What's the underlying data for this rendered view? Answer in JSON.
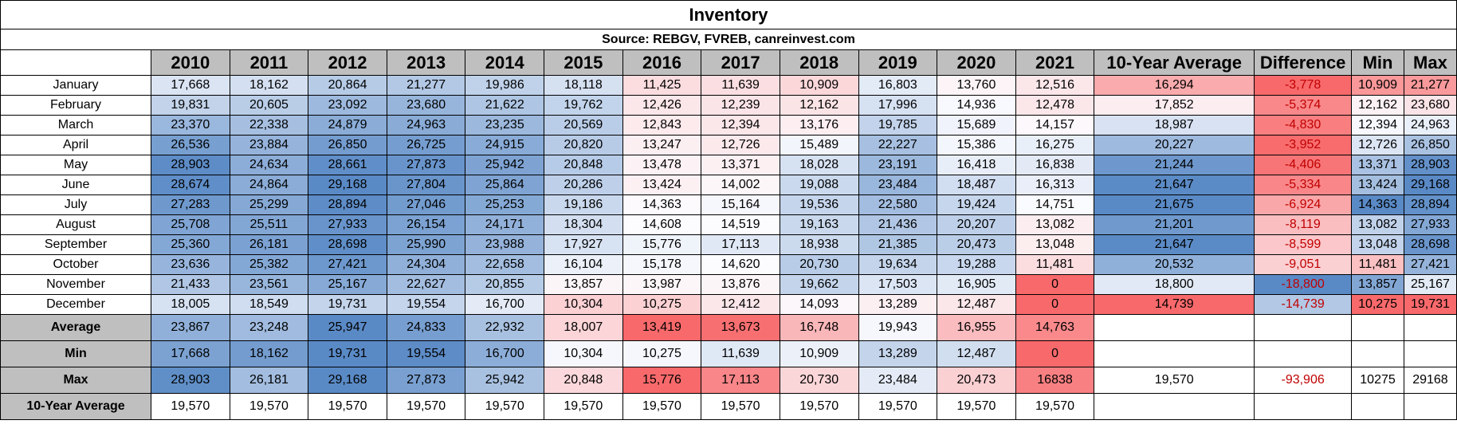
{
  "title": "Inventory",
  "source": "Source: REBGV, FVREB, canreinvest.com",
  "columns": [
    "2010",
    "2011",
    "2012",
    "2013",
    "2014",
    "2015",
    "2016",
    "2017",
    "2018",
    "2019",
    "2020",
    "2021",
    "10-Year Average",
    "Difference",
    "Min",
    "Max"
  ],
  "months": [
    {
      "label": "January",
      "values": [
        "17,668",
        "18,162",
        "20,864",
        "21,277",
        "19,986",
        "18,118",
        "11,425",
        "11,639",
        "10,909",
        "16,803",
        "13,760",
        "12,516"
      ],
      "avg": "16,294",
      "diff": "-3,778",
      "min": "10,909",
      "max": "21,277"
    },
    {
      "label": "February",
      "values": [
        "19,831",
        "20,605",
        "23,092",
        "23,680",
        "21,622",
        "19,762",
        "12,426",
        "12,239",
        "12,162",
        "17,996",
        "14,936",
        "12,478"
      ],
      "avg": "17,852",
      "diff": "-5,374",
      "min": "12,162",
      "max": "23,680"
    },
    {
      "label": "March",
      "values": [
        "23,370",
        "22,338",
        "24,879",
        "24,963",
        "23,235",
        "20,569",
        "12,843",
        "12,394",
        "13,176",
        "19,785",
        "15,689",
        "14,157"
      ],
      "avg": "18,987",
      "diff": "-4,830",
      "min": "12,394",
      "max": "24,963"
    },
    {
      "label": "April",
      "values": [
        "26,536",
        "23,884",
        "26,850",
        "26,725",
        "24,915",
        "20,820",
        "13,247",
        "12,726",
        "15,489",
        "22,227",
        "15,386",
        "16,275"
      ],
      "avg": "20,227",
      "diff": "-3,952",
      "min": "12,726",
      "max": "26,850"
    },
    {
      "label": "May",
      "values": [
        "28,903",
        "24,634",
        "28,661",
        "27,873",
        "25,942",
        "20,848",
        "13,478",
        "13,371",
        "18,028",
        "23,191",
        "16,418",
        "16,838"
      ],
      "avg": "21,244",
      "diff": "-4,406",
      "min": "13,371",
      "max": "28,903"
    },
    {
      "label": "June",
      "values": [
        "28,674",
        "24,864",
        "29,168",
        "27,804",
        "25,864",
        "20,286",
        "13,424",
        "14,002",
        "19,088",
        "23,484",
        "18,487",
        "16,313"
      ],
      "avg": "21,647",
      "diff": "-5,334",
      "min": "13,424",
      "max": "29,168"
    },
    {
      "label": "July",
      "values": [
        "27,283",
        "25,299",
        "28,894",
        "27,046",
        "25,253",
        "19,186",
        "14,363",
        "15,164",
        "19,536",
        "22,580",
        "19,424",
        "14,751"
      ],
      "avg": "21,675",
      "diff": "-6,924",
      "min": "14,363",
      "max": "28,894"
    },
    {
      "label": "August",
      "values": [
        "25,708",
        "25,511",
        "27,933",
        "26,154",
        "24,171",
        "18,304",
        "14,608",
        "14,519",
        "19,163",
        "21,436",
        "20,207",
        "13,082"
      ],
      "avg": "21,201",
      "diff": "-8,119",
      "min": "13,082",
      "max": "27,933"
    },
    {
      "label": "September",
      "values": [
        "25,360",
        "26,181",
        "28,698",
        "25,990",
        "23,988",
        "17,927",
        "15,776",
        "17,113",
        "18,938",
        "21,385",
        "20,473",
        "13,048"
      ],
      "avg": "21,647",
      "diff": "-8,599",
      "min": "13,048",
      "max": "28,698"
    },
    {
      "label": "October",
      "values": [
        "23,636",
        "25,382",
        "27,421",
        "24,304",
        "22,658",
        "16,104",
        "15,178",
        "14,620",
        "20,730",
        "19,634",
        "19,288",
        "11,481"
      ],
      "avg": "20,532",
      "diff": "-9,051",
      "min": "11,481",
      "max": "27,421"
    },
    {
      "label": "November",
      "values": [
        "21,433",
        "23,561",
        "25,167",
        "22,627",
        "20,855",
        "13,857",
        "13,987",
        "13,876",
        "19,662",
        "17,503",
        "16,905",
        "0"
      ],
      "avg": "18,800",
      "diff": "-18,800",
      "min": "13,857",
      "max": "25,167"
    },
    {
      "label": "December",
      "values": [
        "18,005",
        "18,549",
        "19,731",
        "19,554",
        "16,700",
        "10,304",
        "10,275",
        "12,412",
        "14,093",
        "13,289",
        "12,487",
        "0"
      ],
      "avg": "14,739",
      "diff": "-14,739",
      "min": "10,275",
      "max": "19,731"
    }
  ],
  "summary": [
    {
      "label": "Average",
      "values": [
        "23,867",
        "23,248",
        "25,947",
        "24,833",
        "22,932",
        "18,007",
        "13,419",
        "13,673",
        "16,748",
        "19,943",
        "16,955",
        "14,763"
      ],
      "avg": "",
      "diff": "",
      "min": "",
      "max": ""
    },
    {
      "label": "Min",
      "values": [
        "17,668",
        "18,162",
        "19,731",
        "19,554",
        "16,700",
        "10,304",
        "10,275",
        "11,639",
        "10,909",
        "13,289",
        "12,487",
        "0"
      ],
      "avg": "",
      "diff": "",
      "min": "",
      "max": ""
    },
    {
      "label": "Max",
      "values": [
        "28,903",
        "26,181",
        "29,168",
        "27,873",
        "25,942",
        "20,848",
        "15,776",
        "17,113",
        "20,730",
        "23,484",
        "20,473",
        "16838"
      ],
      "avg": "19,570",
      "diff": "-93,906",
      "min": "10275",
      "max": "29168"
    },
    {
      "label": "10-Year Average",
      "values": [
        "19,570",
        "19,570",
        "19,570",
        "19,570",
        "19,570",
        "19,570",
        "19,570",
        "19,570",
        "19,570",
        "19,570",
        "19,570",
        "19,570"
      ],
      "avg": "",
      "diff": "",
      "min": "",
      "max": ""
    }
  ],
  "colors": {
    "high": "#5a8ac6",
    "mid": "#fcfcff",
    "low": "#f8696b",
    "header_bg": "#bfbfbf",
    "negative_text": "#c00000"
  },
  "chart_data": {
    "type": "table",
    "title": "Inventory",
    "subtitle": "Source: REBGV, FVREB, canreinvest.com",
    "x": [
      "January",
      "February",
      "March",
      "April",
      "May",
      "June",
      "July",
      "August",
      "September",
      "October",
      "November",
      "December"
    ],
    "series": [
      {
        "name": "2010",
        "values": [
          17668,
          19831,
          23370,
          26536,
          28903,
          28674,
          27283,
          25708,
          25360,
          23636,
          21433,
          18005
        ]
      },
      {
        "name": "2011",
        "values": [
          18162,
          20605,
          22338,
          23884,
          24634,
          24864,
          25299,
          25511,
          26181,
          25382,
          23561,
          18549
        ]
      },
      {
        "name": "2012",
        "values": [
          20864,
          23092,
          24879,
          26850,
          28661,
          29168,
          28894,
          27933,
          28698,
          27421,
          25167,
          19731
        ]
      },
      {
        "name": "2013",
        "values": [
          21277,
          23680,
          24963,
          26725,
          27873,
          27804,
          27046,
          26154,
          25990,
          24304,
          22627,
          19554
        ]
      },
      {
        "name": "2014",
        "values": [
          19986,
          21622,
          23235,
          24915,
          25942,
          25864,
          25253,
          24171,
          23988,
          22658,
          20855,
          16700
        ]
      },
      {
        "name": "2015",
        "values": [
          18118,
          19762,
          20569,
          20820,
          20848,
          20286,
          19186,
          18304,
          17927,
          16104,
          13857,
          10304
        ]
      },
      {
        "name": "2016",
        "values": [
          11425,
          12426,
          12843,
          13247,
          13478,
          13424,
          14363,
          14608,
          15776,
          15178,
          13987,
          10275
        ]
      },
      {
        "name": "2017",
        "values": [
          11639,
          12239,
          12394,
          12726,
          13371,
          14002,
          15164,
          14519,
          17113,
          14620,
          13876,
          12412
        ]
      },
      {
        "name": "2018",
        "values": [
          10909,
          12162,
          13176,
          15489,
          18028,
          19088,
          19536,
          19163,
          18938,
          20730,
          19662,
          14093
        ]
      },
      {
        "name": "2019",
        "values": [
          16803,
          17996,
          19785,
          22227,
          23191,
          23484,
          22580,
          21436,
          21385,
          19634,
          17503,
          13289
        ]
      },
      {
        "name": "2020",
        "values": [
          13760,
          14936,
          15689,
          15386,
          16418,
          18487,
          19424,
          20207,
          20473,
          19288,
          16905,
          12487
        ]
      },
      {
        "name": "2021",
        "values": [
          12516,
          12478,
          14157,
          16275,
          16838,
          16313,
          14751,
          13082,
          13048,
          11481,
          0,
          0
        ]
      },
      {
        "name": "10-Year Average",
        "values": [
          16294,
          17852,
          18987,
          20227,
          21244,
          21647,
          21675,
          21201,
          21647,
          20532,
          18800,
          14739
        ]
      },
      {
        "name": "Difference",
        "values": [
          -3778,
          -5374,
          -4830,
          -3952,
          -4406,
          -5334,
          -6924,
          -8119,
          -8599,
          -9051,
          -18800,
          -14739
        ]
      },
      {
        "name": "Min",
        "values": [
          10909,
          12162,
          12394,
          12726,
          13371,
          13424,
          14363,
          13082,
          13048,
          11481,
          13857,
          10275
        ]
      },
      {
        "name": "Max",
        "values": [
          21277,
          23680,
          24963,
          26850,
          28903,
          29168,
          28894,
          27933,
          28698,
          27421,
          25167,
          19731
        ]
      }
    ]
  }
}
